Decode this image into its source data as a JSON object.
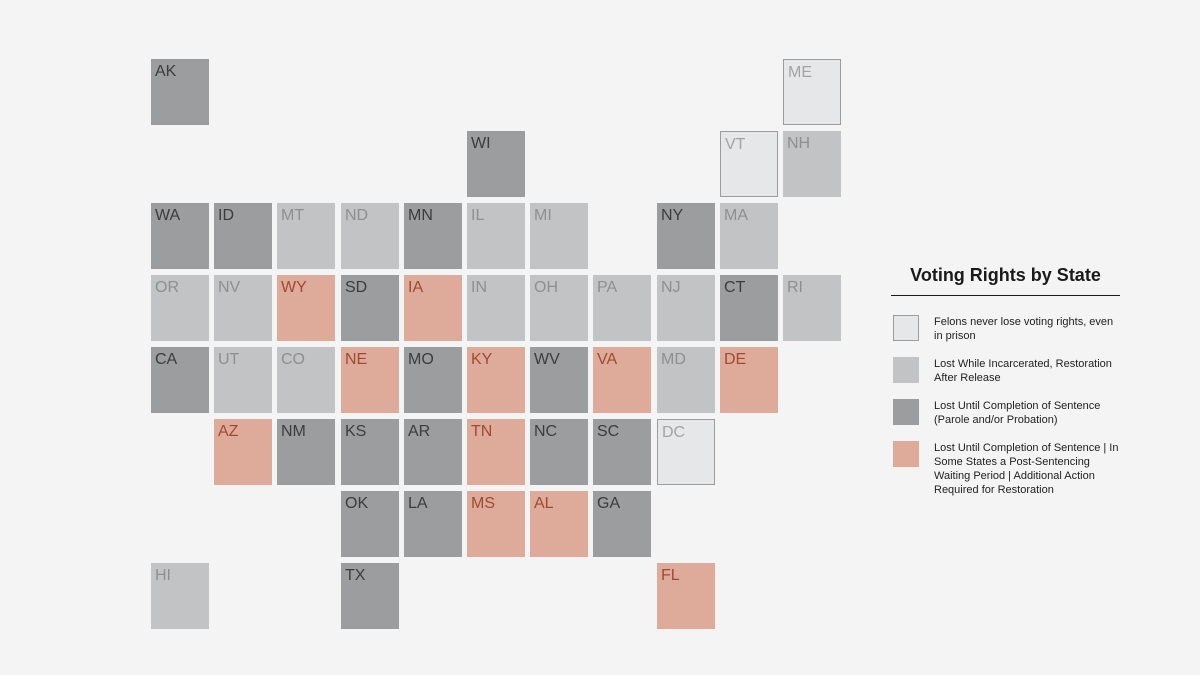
{
  "legend": {
    "title": "Voting Rights by State",
    "items": [
      {
        "key": "never",
        "label": "Felons never lose voting rights, even in prison",
        "color": "#e6e7e8"
      },
      {
        "key": "incarcerated",
        "label": "Lost While Incarcerated, Restoration After Release",
        "color": "#c2c3c5"
      },
      {
        "key": "sentence",
        "label": "Lost Until Completion of Sentence (Parole and/or Probation)",
        "color": "#9c9d9f"
      },
      {
        "key": "waiting",
        "label": "Lost Until Completion of Sentence | In Some States a Post-Sentencing Waiting Period | Additional Action Required for Restoration",
        "color": "#deab9a"
      }
    ]
  },
  "states": [
    {
      "abbr": "AK",
      "cat": "sentence",
      "row": 0,
      "col": 0
    },
    {
      "abbr": "ME",
      "cat": "never",
      "row": 0,
      "col": 10
    },
    {
      "abbr": "WI",
      "cat": "sentence",
      "row": 1,
      "col": 5
    },
    {
      "abbr": "VT",
      "cat": "never",
      "row": 1,
      "col": 9
    },
    {
      "abbr": "NH",
      "cat": "incarcerated",
      "row": 1,
      "col": 10
    },
    {
      "abbr": "WA",
      "cat": "sentence",
      "row": 2,
      "col": 0
    },
    {
      "abbr": "ID",
      "cat": "sentence",
      "row": 2,
      "col": 1
    },
    {
      "abbr": "MT",
      "cat": "incarcerated",
      "row": 2,
      "col": 2
    },
    {
      "abbr": "ND",
      "cat": "incarcerated",
      "row": 2,
      "col": 3
    },
    {
      "abbr": "MN",
      "cat": "sentence",
      "row": 2,
      "col": 4
    },
    {
      "abbr": "IL",
      "cat": "incarcerated",
      "row": 2,
      "col": 5
    },
    {
      "abbr": "MI",
      "cat": "incarcerated",
      "row": 2,
      "col": 6
    },
    {
      "abbr": "NY",
      "cat": "sentence",
      "row": 2,
      "col": 8
    },
    {
      "abbr": "MA",
      "cat": "incarcerated",
      "row": 2,
      "col": 9
    },
    {
      "abbr": "OR",
      "cat": "incarcerated",
      "row": 3,
      "col": 0
    },
    {
      "abbr": "NV",
      "cat": "incarcerated",
      "row": 3,
      "col": 1
    },
    {
      "abbr": "WY",
      "cat": "waiting",
      "row": 3,
      "col": 2
    },
    {
      "abbr": "SD",
      "cat": "sentence",
      "row": 3,
      "col": 3
    },
    {
      "abbr": "IA",
      "cat": "waiting",
      "row": 3,
      "col": 4
    },
    {
      "abbr": "IN",
      "cat": "incarcerated",
      "row": 3,
      "col": 5
    },
    {
      "abbr": "OH",
      "cat": "incarcerated",
      "row": 3,
      "col": 6
    },
    {
      "abbr": "PA",
      "cat": "incarcerated",
      "row": 3,
      "col": 7
    },
    {
      "abbr": "NJ",
      "cat": "incarcerated",
      "row": 3,
      "col": 8
    },
    {
      "abbr": "CT",
      "cat": "sentence",
      "row": 3,
      "col": 9
    },
    {
      "abbr": "RI",
      "cat": "incarcerated",
      "row": 3,
      "col": 10
    },
    {
      "abbr": "CA",
      "cat": "sentence",
      "row": 4,
      "col": 0
    },
    {
      "abbr": "UT",
      "cat": "incarcerated",
      "row": 4,
      "col": 1
    },
    {
      "abbr": "CO",
      "cat": "incarcerated",
      "row": 4,
      "col": 2
    },
    {
      "abbr": "NE",
      "cat": "waiting",
      "row": 4,
      "col": 3
    },
    {
      "abbr": "MO",
      "cat": "sentence",
      "row": 4,
      "col": 4
    },
    {
      "abbr": "KY",
      "cat": "waiting",
      "row": 4,
      "col": 5
    },
    {
      "abbr": "WV",
      "cat": "sentence",
      "row": 4,
      "col": 6
    },
    {
      "abbr": "VA",
      "cat": "waiting",
      "row": 4,
      "col": 7
    },
    {
      "abbr": "MD",
      "cat": "incarcerated",
      "row": 4,
      "col": 8
    },
    {
      "abbr": "DE",
      "cat": "waiting",
      "row": 4,
      "col": 9
    },
    {
      "abbr": "AZ",
      "cat": "waiting",
      "row": 5,
      "col": 1
    },
    {
      "abbr": "NM",
      "cat": "sentence",
      "row": 5,
      "col": 2
    },
    {
      "abbr": "KS",
      "cat": "sentence",
      "row": 5,
      "col": 3
    },
    {
      "abbr": "AR",
      "cat": "sentence",
      "row": 5,
      "col": 4
    },
    {
      "abbr": "TN",
      "cat": "waiting",
      "row": 5,
      "col": 5
    },
    {
      "abbr": "NC",
      "cat": "sentence",
      "row": 5,
      "col": 6
    },
    {
      "abbr": "SC",
      "cat": "sentence",
      "row": 5,
      "col": 7
    },
    {
      "abbr": "DC",
      "cat": "never",
      "row": 5,
      "col": 8
    },
    {
      "abbr": "OK",
      "cat": "sentence",
      "row": 6,
      "col": 3
    },
    {
      "abbr": "LA",
      "cat": "sentence",
      "row": 6,
      "col": 4
    },
    {
      "abbr": "MS",
      "cat": "waiting",
      "row": 6,
      "col": 5
    },
    {
      "abbr": "AL",
      "cat": "waiting",
      "row": 6,
      "col": 6
    },
    {
      "abbr": "GA",
      "cat": "sentence",
      "row": 6,
      "col": 7
    },
    {
      "abbr": "HI",
      "cat": "incarcerated",
      "row": 7,
      "col": 0
    },
    {
      "abbr": "TX",
      "cat": "sentence",
      "row": 7,
      "col": 3
    },
    {
      "abbr": "FL",
      "cat": "waiting",
      "row": 7,
      "col": 8
    }
  ]
}
